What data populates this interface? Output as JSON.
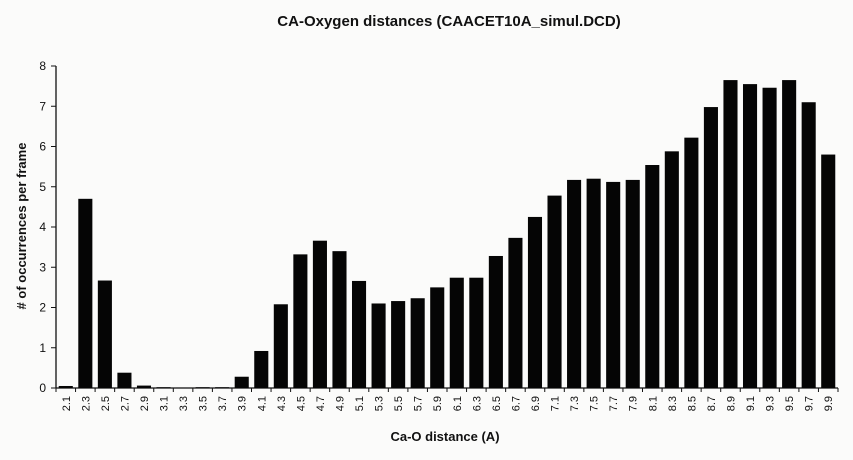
{
  "chart_data": {
    "type": "bar",
    "title": "CA-Oxygen distances (CAACET10A_simul.DCD)",
    "xlabel": "Ca-O distance (A)",
    "ylabel": "# of occurrences per frame",
    "ylim": [
      0,
      8
    ],
    "yticks": [
      "0",
      "1",
      "2",
      "3",
      "4",
      "5",
      "6",
      "7",
      "8"
    ],
    "grid": false,
    "legend": "none",
    "bar_color": "#050505",
    "categories": [
      "2.1",
      "2.3",
      "2.5",
      "2.7",
      "2.9",
      "3.1",
      "3.3",
      "3.5",
      "3.7",
      "3.9",
      "4.1",
      "4.3",
      "4.5",
      "4.7",
      "4.9",
      "5.1",
      "5.3",
      "5.5",
      "5.7",
      "5.9",
      "6.1",
      "6.3",
      "6.5",
      "6.7",
      "6.9",
      "7.1",
      "7.3",
      "7.5",
      "7.7",
      "7.9",
      "8.1",
      "8.3",
      "8.5",
      "8.7",
      "8.9",
      "9.1",
      "9.3",
      "9.5",
      "9.7",
      "9.9"
    ],
    "values": [
      0.05,
      4.7,
      2.67,
      0.38,
      0.06,
      0.02,
      0.01,
      0.02,
      0.02,
      0.28,
      0.92,
      2.08,
      3.32,
      3.66,
      3.4,
      2.66,
      2.1,
      2.16,
      2.23,
      2.5,
      2.74,
      2.74,
      3.28,
      3.73,
      4.25,
      4.78,
      5.17,
      5.2,
      5.12,
      5.17,
      5.54,
      5.88,
      6.22,
      6.98,
      7.65,
      7.55,
      7.46,
      7.65,
      7.1,
      5.8
    ]
  }
}
